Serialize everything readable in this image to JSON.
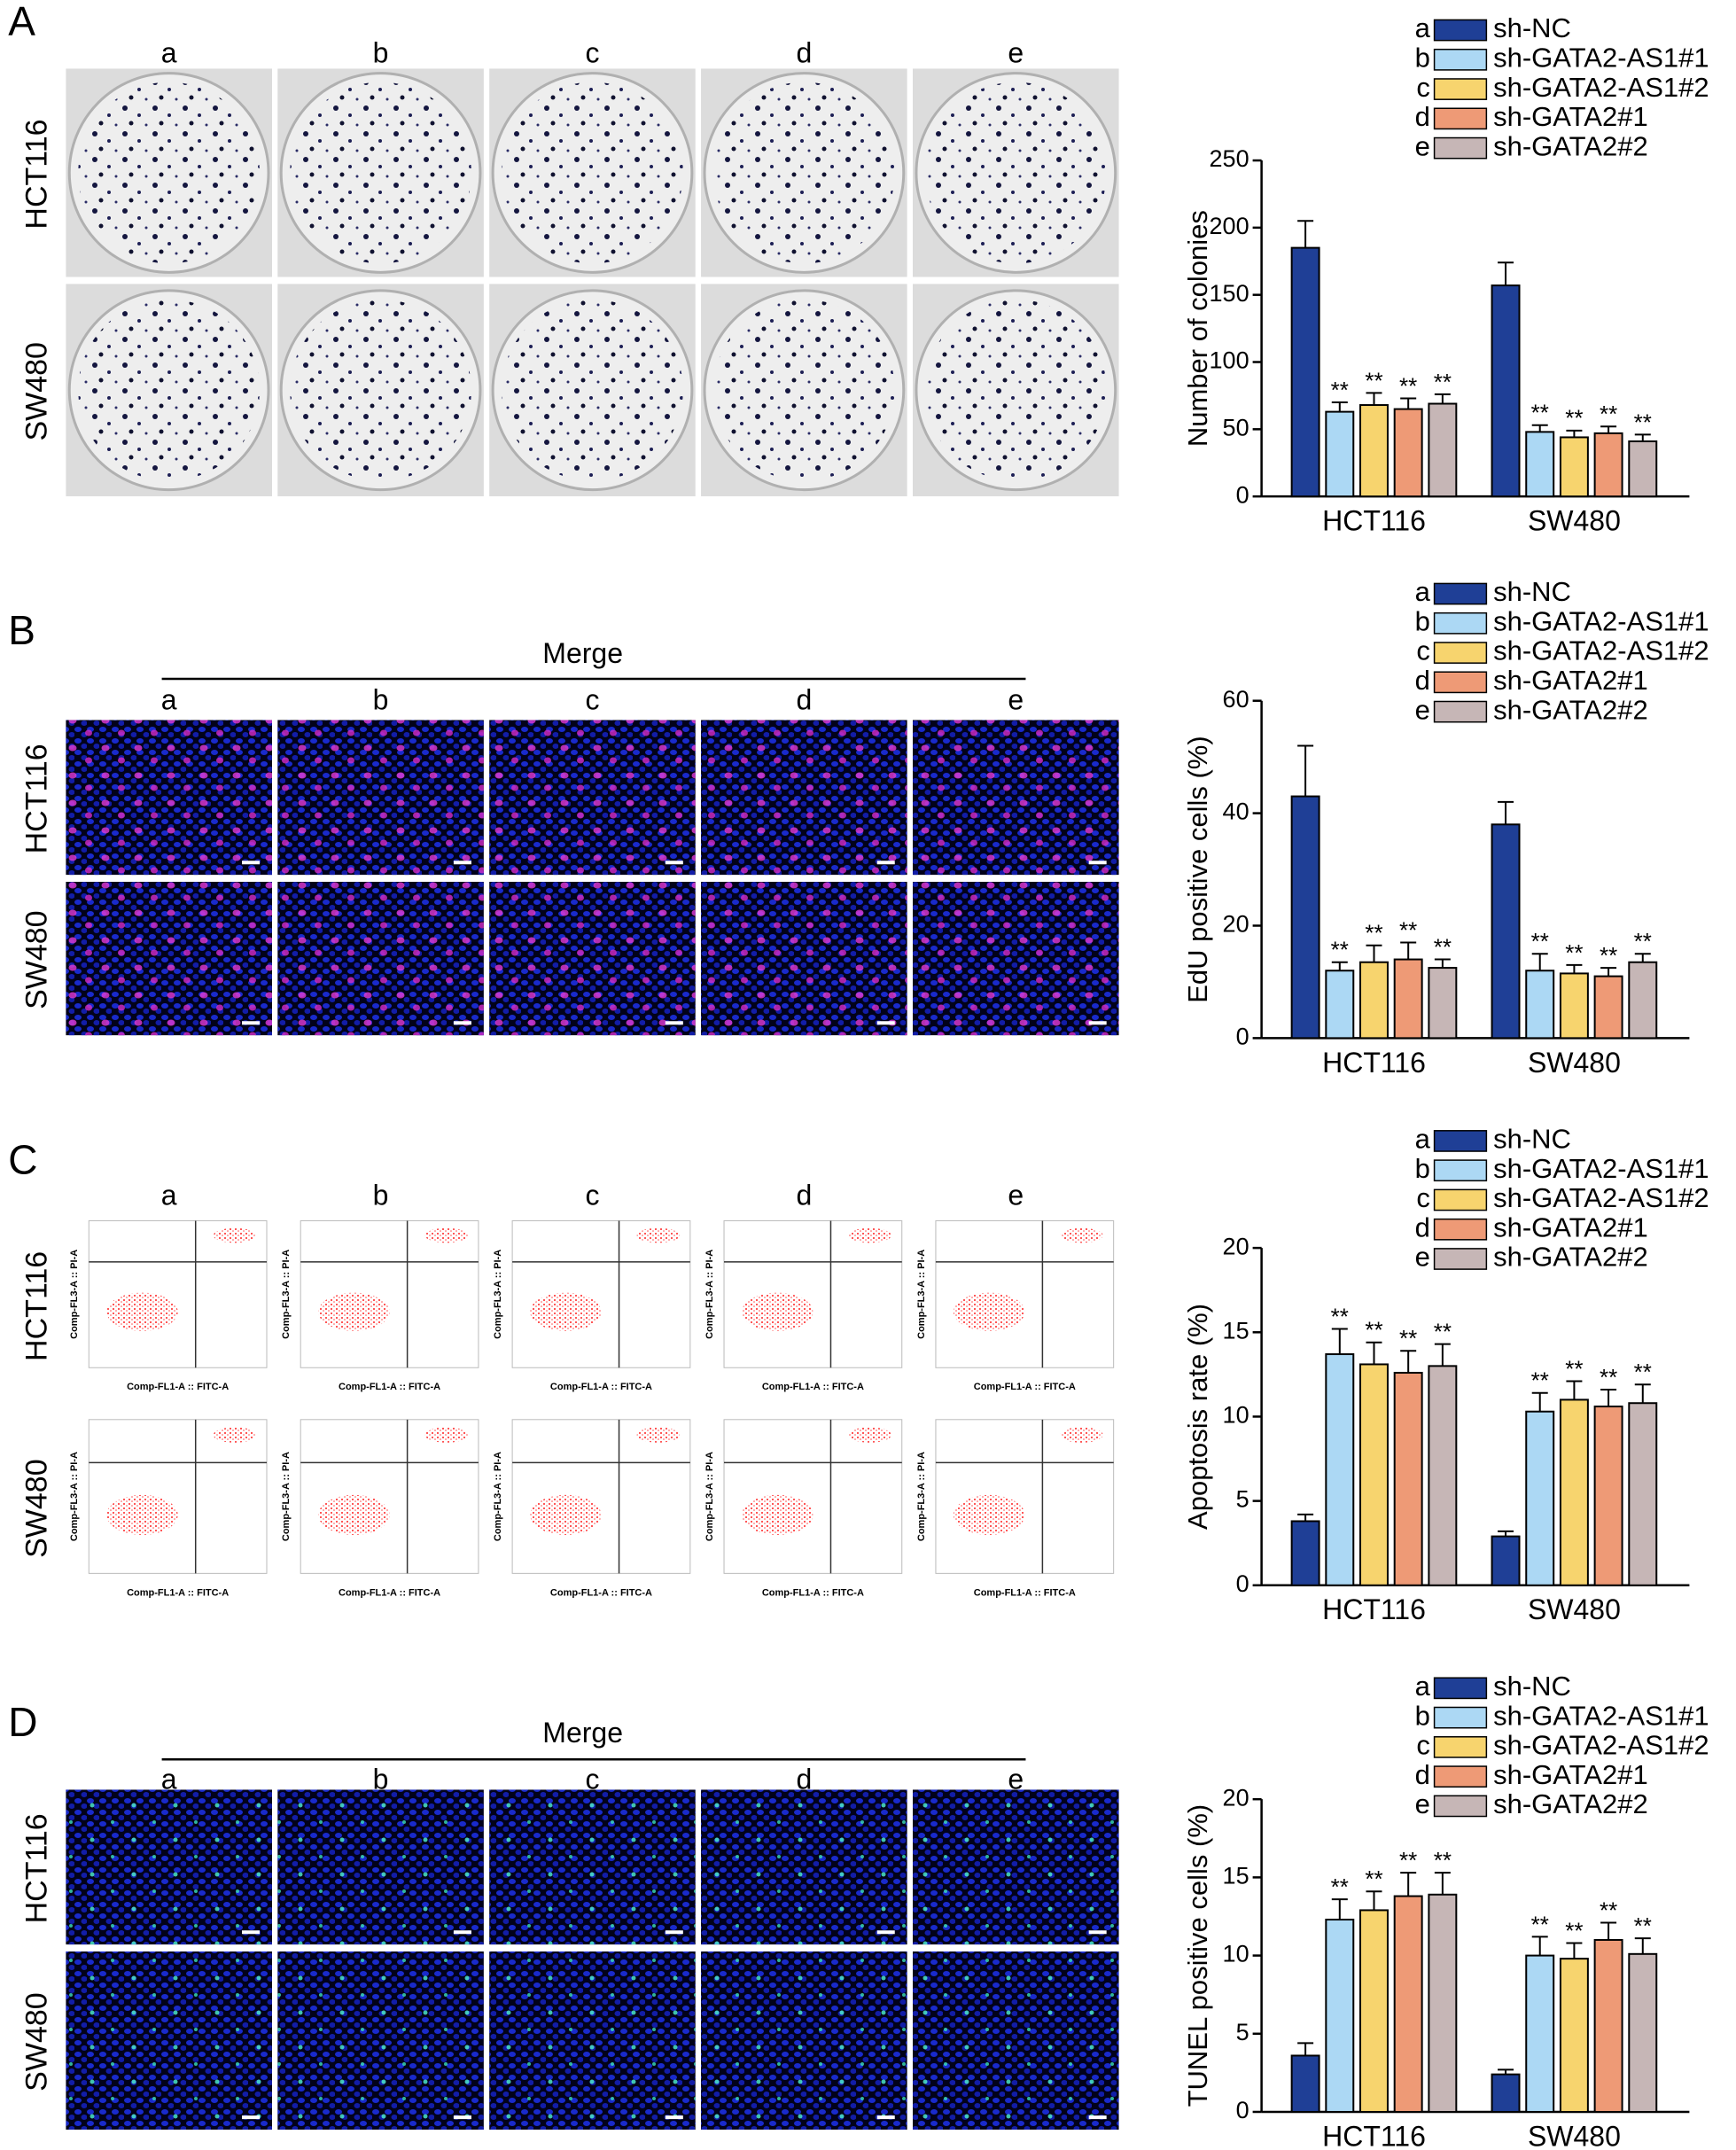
{
  "panels": [
    {
      "label": "A",
      "style": "colony",
      "columns": [
        "a",
        "b",
        "c",
        "d",
        "e"
      ],
      "rows": [
        "HCT116",
        "SW480"
      ]
    },
    {
      "label": "B",
      "style": "edu",
      "header": "Merge",
      "columns": [
        "a",
        "b",
        "c",
        "d",
        "e"
      ],
      "rows": [
        "HCT116",
        "SW480"
      ]
    },
    {
      "label": "C",
      "style": "flow",
      "columns": [
        "a",
        "b",
        "c",
        "d",
        "e"
      ],
      "rows": [
        "HCT116",
        "SW480"
      ],
      "plot_x_label": "Comp-FL1-A :: FITC-A",
      "plot_y_label": "Comp-FL3-A :: PI-A"
    },
    {
      "label": "D",
      "style": "tunel",
      "header": "Merge",
      "columns": [
        "a",
        "b",
        "c",
        "d",
        "e"
      ],
      "rows": [
        "HCT116",
        "SW480"
      ]
    }
  ],
  "chart_data": [
    {
      "type": "bar",
      "y_label": "Number of colonies",
      "categories": [
        "HCT116",
        "SW480"
      ],
      "legend_keys": [
        "a",
        "b",
        "c",
        "d",
        "e"
      ],
      "ylim": [
        0,
        250
      ],
      "yticks": [
        0,
        50,
        100,
        150,
        200,
        250
      ],
      "series": [
        {
          "name": "sh-NC",
          "color": "#1f3f96",
          "values": [
            185,
            157
          ],
          "errors": [
            20,
            17
          ]
        },
        {
          "name": "sh-GATA2-AS1#1",
          "color": "#acd8f4",
          "values": [
            63,
            48
          ],
          "errors": [
            7,
            5
          ],
          "annotations": [
            "**",
            "**"
          ]
        },
        {
          "name": "sh-GATA2-AS1#2",
          "color": "#f7d46e",
          "values": [
            68,
            44
          ],
          "errors": [
            9,
            5
          ],
          "annotations": [
            "**",
            "**"
          ]
        },
        {
          "name": "sh-GATA2#1",
          "color": "#ee9a76",
          "values": [
            65,
            47
          ],
          "errors": [
            8,
            5
          ],
          "annotations": [
            "**",
            "**"
          ]
        },
        {
          "name": "sh-GATA2#2",
          "color": "#c6b6b6",
          "values": [
            69,
            41
          ],
          "errors": [
            7,
            5
          ],
          "annotations": [
            "**",
            "**"
          ]
        }
      ]
    },
    {
      "type": "bar",
      "y_label": "EdU positive cells (%)",
      "categories": [
        "HCT116",
        "SW480"
      ],
      "legend_keys": [
        "a",
        "b",
        "c",
        "d",
        "e"
      ],
      "ylim": [
        0,
        60
      ],
      "yticks": [
        0,
        20,
        40,
        60
      ],
      "series": [
        {
          "name": "sh-NC",
          "color": "#1f3f96",
          "values": [
            43,
            38
          ],
          "errors": [
            9,
            4
          ]
        },
        {
          "name": "sh-GATA2-AS1#1",
          "color": "#acd8f4",
          "values": [
            12,
            12
          ],
          "errors": [
            1.5,
            3
          ],
          "annotations": [
            "**",
            "**"
          ]
        },
        {
          "name": "sh-GATA2-AS1#2",
          "color": "#f7d46e",
          "values": [
            13.5,
            11.5
          ],
          "errors": [
            3,
            1.5
          ],
          "annotations": [
            "**",
            "**"
          ]
        },
        {
          "name": "sh-GATA2#1",
          "color": "#ee9a76",
          "values": [
            14,
            11
          ],
          "errors": [
            3,
            1.5
          ],
          "annotations": [
            "**",
            "**"
          ]
        },
        {
          "name": "sh-GATA2#2",
          "color": "#c6b6b6",
          "values": [
            12.5,
            13.5
          ],
          "errors": [
            1.5,
            1.5
          ],
          "annotations": [
            "**",
            "**"
          ]
        }
      ]
    },
    {
      "type": "bar",
      "y_label": "Apoptosis rate (%)",
      "categories": [
        "HCT116",
        "SW480"
      ],
      "legend_keys": [
        "a",
        "b",
        "c",
        "d",
        "e"
      ],
      "ylim": [
        0,
        20
      ],
      "yticks": [
        0,
        5,
        10,
        15,
        20
      ],
      "series": [
        {
          "name": "sh-NC",
          "color": "#1f3f96",
          "values": [
            3.8,
            2.9
          ],
          "errors": [
            0.4,
            0.3
          ]
        },
        {
          "name": "sh-GATA2-AS1#1",
          "color": "#acd8f4",
          "values": [
            13.7,
            10.3
          ],
          "errors": [
            1.5,
            1.1
          ],
          "annotations": [
            "**",
            "**"
          ]
        },
        {
          "name": "sh-GATA2-AS1#2",
          "color": "#f7d46e",
          "values": [
            13.1,
            11.0
          ],
          "errors": [
            1.3,
            1.1
          ],
          "annotations": [
            "**",
            "**"
          ]
        },
        {
          "name": "sh-GATA2#1",
          "color": "#ee9a76",
          "values": [
            12.6,
            10.6
          ],
          "errors": [
            1.3,
            1.0
          ],
          "annotations": [
            "**",
            "**"
          ]
        },
        {
          "name": "sh-GATA2#2",
          "color": "#c6b6b6",
          "values": [
            13.0,
            10.8
          ],
          "errors": [
            1.3,
            1.1
          ],
          "annotations": [
            "**",
            "**"
          ]
        }
      ]
    },
    {
      "type": "bar",
      "y_label": "TUNEL positive cells (%)",
      "categories": [
        "HCT116",
        "SW480"
      ],
      "legend_keys": [
        "a",
        "b",
        "c",
        "d",
        "e"
      ],
      "ylim": [
        0,
        20
      ],
      "yticks": [
        0,
        5,
        10,
        15,
        20
      ],
      "series": [
        {
          "name": "sh-NC",
          "color": "#1f3f96",
          "values": [
            3.6,
            2.4
          ],
          "errors": [
            0.8,
            0.3
          ]
        },
        {
          "name": "sh-GATA2-AS1#1",
          "color": "#acd8f4",
          "values": [
            12.3,
            10.0
          ],
          "errors": [
            1.3,
            1.2
          ],
          "annotations": [
            "**",
            "**"
          ]
        },
        {
          "name": "sh-GATA2-AS1#2",
          "color": "#f7d46e",
          "values": [
            12.9,
            9.8
          ],
          "errors": [
            1.2,
            1.0
          ],
          "annotations": [
            "**",
            "**"
          ]
        },
        {
          "name": "sh-GATA2#1",
          "color": "#ee9a76",
          "values": [
            13.8,
            11.0
          ],
          "errors": [
            1.5,
            1.1
          ],
          "annotations": [
            "**",
            "**"
          ]
        },
        {
          "name": "sh-GATA2#2",
          "color": "#c6b6b6",
          "values": [
            13.9,
            10.1
          ],
          "errors": [
            1.4,
            1.0
          ],
          "annotations": [
            "**",
            "**"
          ]
        }
      ]
    }
  ]
}
